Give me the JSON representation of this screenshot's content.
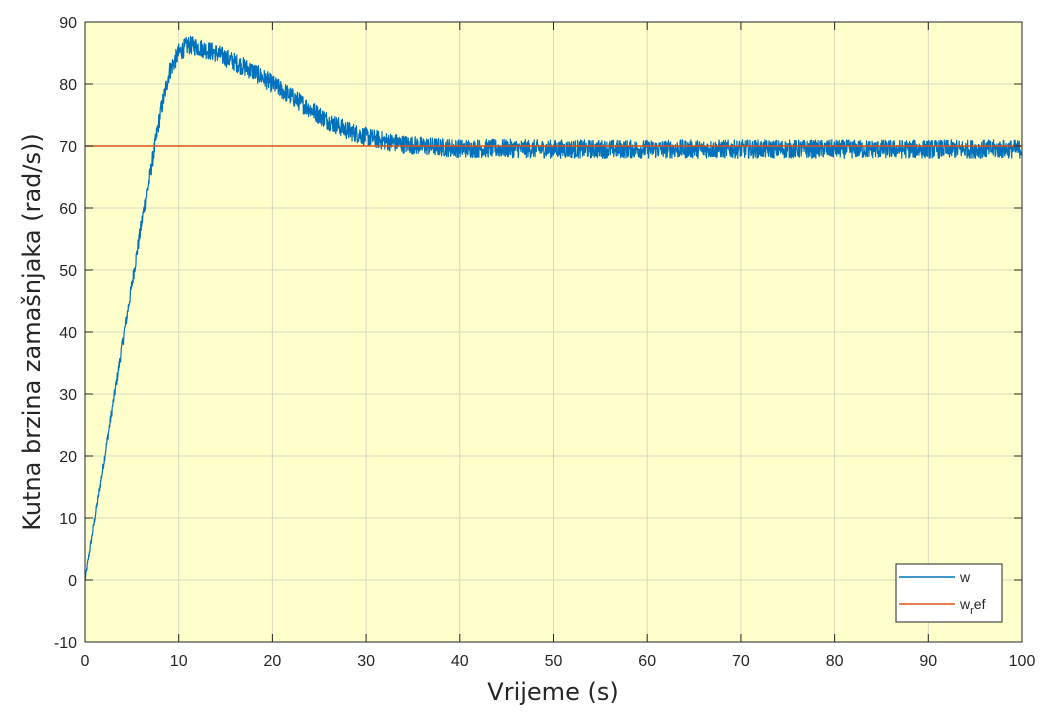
{
  "chart_data": {
    "type": "line",
    "title": "",
    "xlabel": "Vrijeme (s)",
    "ylabel": "Kutna brzina zamašnjaka (rad/s))",
    "xlim": [
      0,
      100
    ],
    "ylim": [
      -10,
      90
    ],
    "xticks": [
      "0",
      "10",
      "20",
      "30",
      "40",
      "50",
      "60",
      "70",
      "80",
      "90",
      "100"
    ],
    "yticks": [
      "-10",
      "0",
      "10",
      "20",
      "30",
      "40",
      "50",
      "60",
      "70",
      "80",
      "90"
    ],
    "grid": true,
    "background_color": "#FFFFCC",
    "legend_position": "bottom-right",
    "series": [
      {
        "name": "w",
        "color": "#0072BD",
        "x": [
          0,
          2,
          4,
          6,
          7,
          8,
          9,
          10,
          11,
          12,
          13,
          14,
          16,
          18,
          20,
          22,
          24,
          26,
          28,
          30,
          32,
          34,
          36,
          38,
          40,
          45,
          50,
          60,
          70,
          80,
          90,
          100
        ],
        "y": [
          0,
          19,
          38,
          57,
          66,
          75,
          82,
          85,
          86.3,
          86,
          85.5,
          85,
          83.5,
          82,
          80,
          78,
          76,
          74,
          72.5,
          71.5,
          70.8,
          70.3,
          70,
          69.8,
          69.6,
          69.6,
          69.5,
          69.5,
          69.5,
          69.5,
          69.5,
          69.5
        ],
        "noise_band": 1.5
      },
      {
        "name": "w_ref",
        "label_main": "w",
        "label_sub": "r",
        "label_tail": "ef",
        "color": "#D95319",
        "x": [
          0,
          100
        ],
        "y": [
          70,
          70
        ]
      }
    ]
  }
}
